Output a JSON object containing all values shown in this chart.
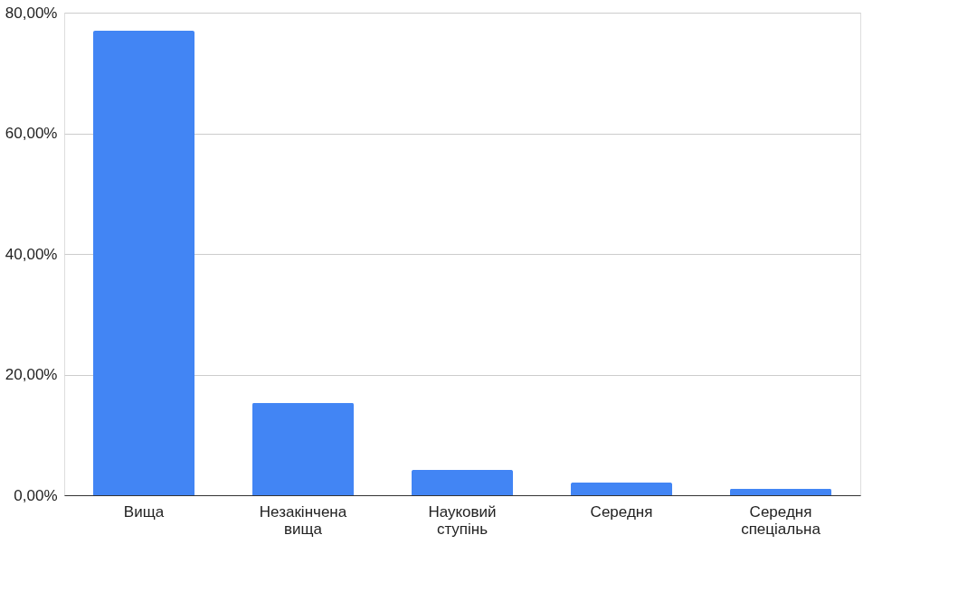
{
  "chart_data": {
    "type": "bar",
    "categories": [
      "Вища",
      "Незакінчена вища",
      "Науковий ступінь",
      "Середня",
      "Середня спеціальна"
    ],
    "values": [
      77.0,
      15.3,
      4.2,
      2.1,
      1.1
    ],
    "color": "#4285f4",
    "ylim": [
      0,
      80
    ],
    "yticks": [
      {
        "value": 0,
        "label": "0,00%"
      },
      {
        "value": 20,
        "label": "20,00%"
      },
      {
        "value": 40,
        "label": "40,00%"
      },
      {
        "value": 60,
        "label": "60,00%"
      },
      {
        "value": 80,
        "label": "80,00%"
      }
    ],
    "grid": "y"
  }
}
